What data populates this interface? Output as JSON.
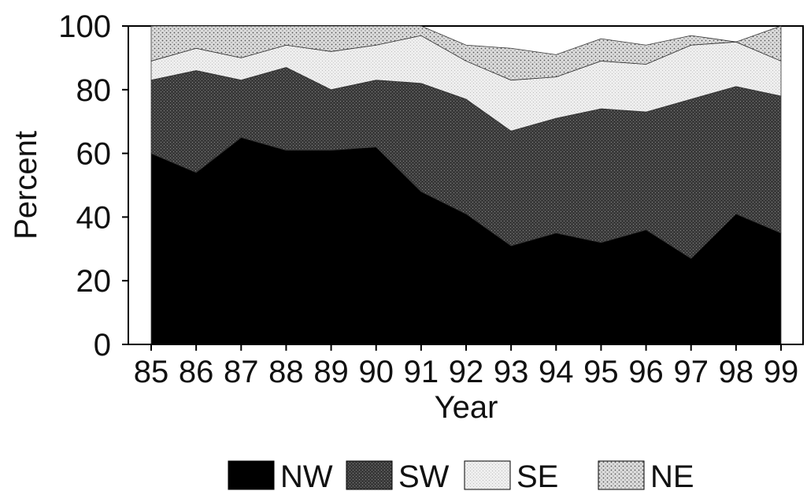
{
  "chart_data": {
    "type": "area",
    "stacked": true,
    "xlabel": "Year",
    "ylabel": "Percent",
    "ylim": [
      0,
      100
    ],
    "yticks": [
      0,
      20,
      40,
      60,
      80,
      100
    ],
    "categories": [
      "85",
      "86",
      "87",
      "88",
      "89",
      "90",
      "91",
      "92",
      "93",
      "94",
      "95",
      "96",
      "97",
      "98",
      "99"
    ],
    "series": [
      {
        "name": "NW",
        "color": "#000000",
        "pattern": "solid",
        "values": [
          60,
          54,
          65,
          61,
          61,
          62,
          48,
          41,
          31,
          35,
          32,
          36,
          27,
          41,
          35
        ]
      },
      {
        "name": "SW",
        "color": "#4a4a4a",
        "pattern": "dense-stipple",
        "values": [
          23,
          32,
          18,
          26,
          19,
          21,
          34,
          36,
          36,
          36,
          42,
          37,
          50,
          40,
          43
        ]
      },
      {
        "name": "SE",
        "color": "#e4e4e4",
        "pattern": "light-stipple",
        "values": [
          6,
          7,
          7,
          7,
          12,
          11,
          15,
          12,
          16,
          13,
          15,
          15,
          17,
          14,
          11
        ]
      },
      {
        "name": "NE",
        "color": "#bdbdbd",
        "pattern": "dotted",
        "values": [
          11,
          7,
          10,
          6,
          8,
          6,
          3,
          5,
          10,
          7,
          7,
          6,
          3,
          0,
          11
        ]
      }
    ],
    "grid": false,
    "legend_position": "bottom"
  }
}
